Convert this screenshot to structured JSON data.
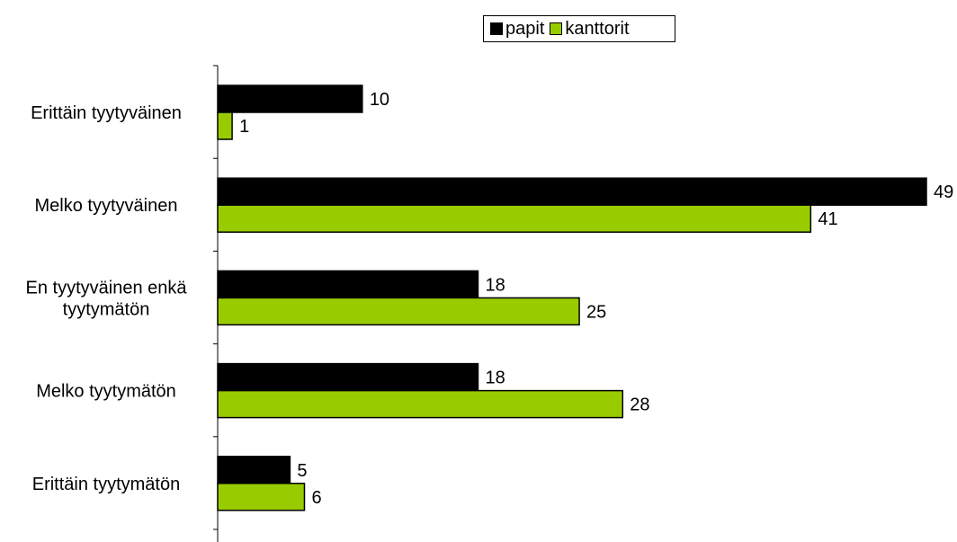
{
  "chart_data": {
    "type": "bar",
    "orientation": "horizontal",
    "categories": [
      "Erittäin tyytyväinen",
      "Melko tyytyväinen",
      "En tyytyväinen enkä tyytymätön",
      "Melko tyytymätön",
      "Erittäin tyytymätön"
    ],
    "category_lines": [
      [
        "Erittäin tyytyväinen"
      ],
      [
        "Melko tyytyväinen"
      ],
      [
        "En tyytyväinen enkä",
        "tyytymätön"
      ],
      [
        "Melko tyytymätön"
      ],
      [
        "Erittäin tyytymätön"
      ]
    ],
    "series": [
      {
        "name": "papit",
        "color": "#000000",
        "values": [
          10,
          49,
          18,
          18,
          5
        ]
      },
      {
        "name": "kanttorit",
        "color": "#99cc00",
        "values": [
          1,
          41,
          25,
          28,
          6
        ]
      }
    ],
    "xlim": [
      0,
      49
    ],
    "legend": "top-center",
    "grid": false
  }
}
